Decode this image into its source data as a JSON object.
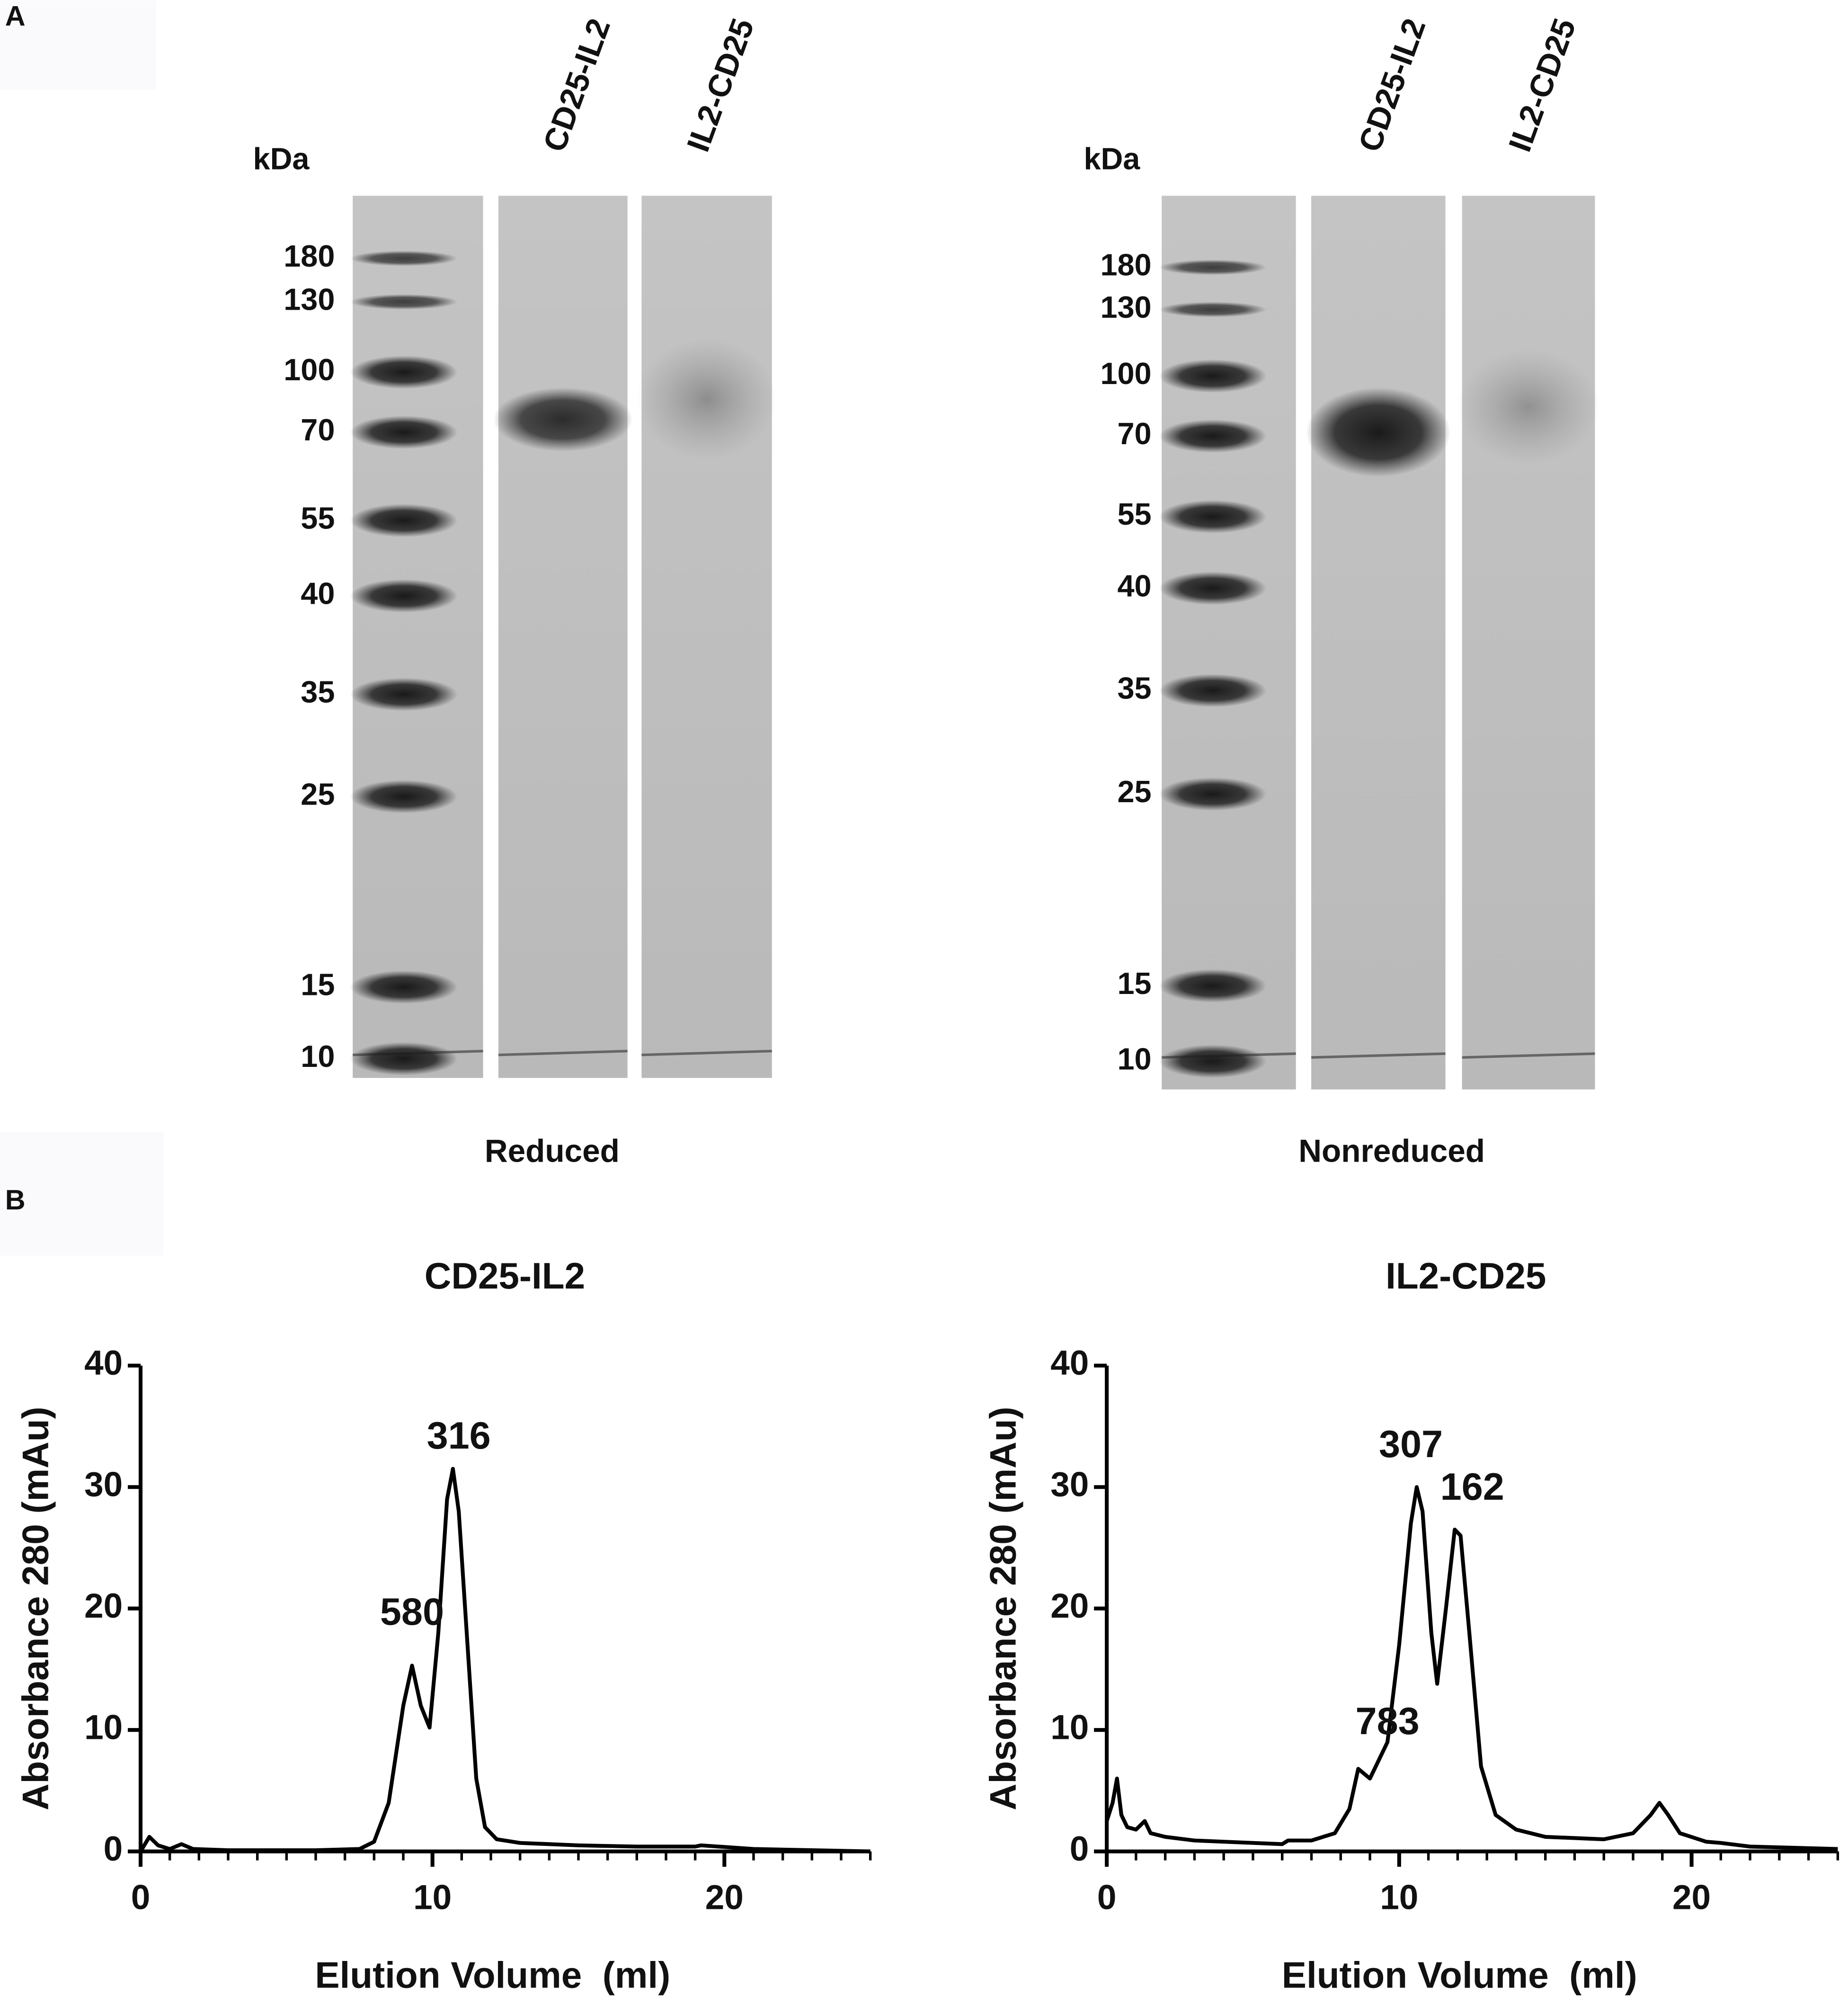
{
  "panel_labels": [
    "A",
    "B"
  ],
  "gels": [
    {
      "unit": "kDa",
      "lanes": [
        "CD25-IL2",
        "IL2-CD25"
      ],
      "markers": [
        180,
        130,
        100,
        70,
        55,
        40,
        35,
        25,
        15,
        10
      ],
      "condition": "Reduced"
    },
    {
      "unit": "kDa",
      "lanes": [
        "CD25-IL2",
        "IL2-CD25"
      ],
      "markers": [
        180,
        130,
        100,
        70,
        55,
        40,
        35,
        25,
        15,
        10
      ],
      "condition": "Nonreduced"
    }
  ],
  "chart_data": [
    {
      "type": "line",
      "title": "CD25-IL2",
      "xlabel": "Elution Volume  (ml)",
      "ylabel": "Absorbance 280 (mAu)",
      "x": [
        0,
        0.3,
        0.6,
        1,
        1.4,
        1.8,
        3,
        6,
        7.5,
        8,
        8.5,
        9,
        9.3,
        9.6,
        9.9,
        10.2,
        10.5,
        10.7,
        10.9,
        11.2,
        11.5,
        11.8,
        12.2,
        13,
        15,
        17,
        19,
        19.2,
        21,
        25
      ],
      "series": [
        {
          "color": "#000000",
          "values": [
            0,
            1.2,
            0.5,
            0.2,
            0.6,
            0.2,
            0.1,
            0.1,
            0.2,
            0.8,
            4,
            12,
            15.3,
            12,
            10.2,
            18,
            29,
            31.5,
            28,
            17,
            6,
            2,
            1,
            0.7,
            0.5,
            0.4,
            0.4,
            0.5,
            0.2,
            0
          ]
        }
      ],
      "annotations": [
        "580",
        "316"
      ],
      "xlim": [
        0,
        25
      ],
      "ylim": [
        0,
        40
      ],
      "xticks": [
        0,
        10,
        20
      ],
      "yticks": [
        0,
        10,
        20,
        30,
        40
      ],
      "xminorticks": [
        1,
        2,
        3,
        4,
        5,
        6,
        7,
        8,
        9,
        11,
        12,
        13,
        14,
        15,
        16,
        17,
        18,
        19,
        21,
        22,
        23,
        24,
        25
      ]
    },
    {
      "type": "line",
      "title": "IL2-CD25",
      "xlabel": "Elution Volume  (ml)",
      "ylabel": "Absorbance 280 (mAu)",
      "x": [
        0,
        0.2,
        0.35,
        0.5,
        0.7,
        1,
        1.3,
        1.5,
        2,
        3,
        5,
        6,
        6.2,
        7,
        7.8,
        8.3,
        8.6,
        9,
        9.6,
        10,
        10.4,
        10.6,
        10.8,
        11.1,
        11.3,
        11.6,
        11.9,
        12.1,
        12.4,
        12.8,
        13.3,
        14,
        15,
        17,
        18,
        18.6,
        18.9,
        19.2,
        19.6,
        20.5,
        21,
        22,
        25
      ],
      "series": [
        {
          "color": "#000000",
          "values": [
            2.5,
            4,
            6,
            3,
            2,
            1.8,
            2.5,
            1.5,
            1.2,
            0.9,
            0.7,
            0.6,
            0.9,
            0.9,
            1.5,
            3.5,
            6.8,
            6,
            9,
            17,
            27,
            30,
            28,
            18,
            13.8,
            20,
            26.5,
            26,
            18,
            7,
            3,
            1.8,
            1.2,
            1,
            1.5,
            3,
            4,
            3,
            1.5,
            0.8,
            0.7,
            0.4,
            0.2
          ]
        }
      ],
      "annotations": [
        "783",
        "307",
        "162"
      ],
      "xlim": [
        0,
        25
      ],
      "ylim": [
        0,
        40
      ],
      "xticks": [
        0,
        10,
        20
      ],
      "yticks": [
        0,
        10,
        20,
        30,
        40
      ],
      "xminorticks": [
        1,
        2,
        3,
        4,
        5,
        6,
        7,
        8,
        9,
        11,
        12,
        13,
        14,
        15,
        16,
        17,
        18,
        19,
        21,
        22,
        23,
        24,
        25
      ]
    }
  ]
}
